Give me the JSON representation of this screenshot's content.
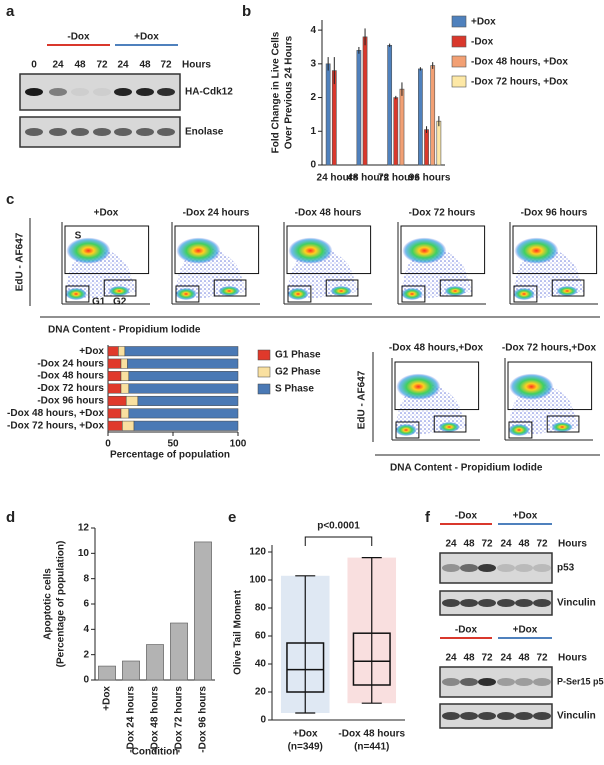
{
  "panel_letters": [
    "a",
    "b",
    "c",
    "d",
    "e",
    "f"
  ],
  "blot_a": {
    "groups": [
      "-Dox",
      "+Dox"
    ],
    "hours_label": "Hours",
    "lanes": [
      "0",
      "24",
      "48",
      "72",
      "24",
      "48",
      "72"
    ],
    "rows": [
      "HA-Cdk12",
      "Enolase"
    ]
  },
  "flow": {
    "titles": [
      "+Dox",
      "-Dox 24 hours",
      "-Dox 48 hours",
      "-Dox 72 hours",
      "-Dox 96 hours"
    ],
    "titles_readd": [
      "-Dox 48 hours,+Dox",
      "-Dox 72 hours,+Dox"
    ],
    "y_label": "EdU - AF647",
    "x_label": "DNA Content - Propidium Iodide",
    "gates": [
      "S",
      "G1",
      "G2"
    ]
  },
  "blot_f": {
    "groups": [
      "-Dox",
      "+Dox"
    ],
    "hours_label": "Hours",
    "lanes": [
      "24",
      "48",
      "72",
      "24",
      "48",
      "72"
    ],
    "rows": [
      "p53",
      "Vinculin",
      "P-Ser15 p53",
      "Vinculin"
    ]
  },
  "chart_data": [
    {
      "type": "bar",
      "ylabel": [
        "Fold Change in Live Cells",
        "Over Previous 24 Hours"
      ],
      "categories": [
        "24 hours",
        "48 hours",
        "72 hours",
        "96 hours"
      ],
      "series": [
        {
          "name": "+Dox",
          "color": "#4f81bd",
          "values": [
            3.0,
            3.4,
            3.55,
            2.85
          ],
          "errors": [
            0.2,
            0.1,
            0.05,
            0.05
          ]
        },
        {
          "name": "-Dox",
          "color": "#d9382c",
          "values": [
            2.8,
            3.8,
            2.0,
            1.05
          ],
          "errors": [
            0.4,
            0.25,
            0.05,
            0.1
          ]
        },
        {
          "name": "-Dox 48 hours, +Dox",
          "color": "#f2a074",
          "values": [
            null,
            null,
            2.25,
            2.95
          ],
          "errors": [
            null,
            null,
            0.2,
            0.1
          ]
        },
        {
          "name": "-Dox 72 hours, +Dox",
          "color": "#fde8a6",
          "values": [
            null,
            null,
            null,
            1.3
          ],
          "errors": [
            null,
            null,
            null,
            0.15
          ]
        }
      ],
      "ylim": [
        0,
        4.3
      ],
      "yticks": [
        0,
        1,
        2,
        3,
        4
      ]
    },
    {
      "type": "stacked_barh",
      "xlabel": "Percentage of population",
      "categories": [
        "+Dox",
        "-Dox 24 hours",
        "-Dox 48 hours",
        "-Dox 72 hours",
        "-Dox 96 hours",
        "-Dox 48 hours, +Dox",
        "-Dox 72 hours, +Dox"
      ],
      "series": [
        {
          "name": "G1 Phase",
          "color": "#e0392b",
          "values": [
            8,
            10,
            10,
            10,
            14,
            10,
            11
          ]
        },
        {
          "name": "G2 Phase",
          "color": "#f9e0a0",
          "values": [
            5,
            5,
            6,
            6,
            9,
            6,
            9
          ]
        },
        {
          "name": "S Phase",
          "color": "#4a79b5",
          "values": [
            87,
            85,
            84,
            84,
            77,
            84,
            80
          ]
        }
      ],
      "xlim": [
        0,
        100
      ],
      "xticks": [
        0,
        50,
        100
      ]
    },
    {
      "type": "bar",
      "ylabel": [
        "Apoptotic cells",
        "(Percentage of population)"
      ],
      "xlabel": "Condition",
      "categories": [
        "+Dox",
        "-Dox 24 hours",
        "-Dox 48 hours",
        "-Dox 72 hours",
        "-Dox 96 hours"
      ],
      "values": [
        1.1,
        1.5,
        2.8,
        4.5,
        10.9
      ],
      "color": "#b3b3b3",
      "ylim": [
        0,
        12
      ],
      "yticks": [
        0,
        2,
        4,
        6,
        8,
        10,
        12
      ]
    },
    {
      "type": "box",
      "ylabel": "Olive Tail Moment",
      "annotation": "p<0.0001",
      "categories": [
        [
          "+Dox",
          "(n=349)"
        ],
        [
          "-Dox 48 hours",
          "(n=441)"
        ]
      ],
      "boxes": [
        {
          "min": 5,
          "q1": 20,
          "median": 36,
          "q3": 55,
          "max": 103,
          "color": "#4f81bd"
        },
        {
          "min": 12,
          "q1": 25,
          "median": 42,
          "q3": 62,
          "max": 116,
          "color": "#e05050"
        }
      ],
      "ylim": [
        0,
        125
      ],
      "yticks": [
        0,
        20,
        40,
        60,
        80,
        100,
        120
      ]
    }
  ]
}
